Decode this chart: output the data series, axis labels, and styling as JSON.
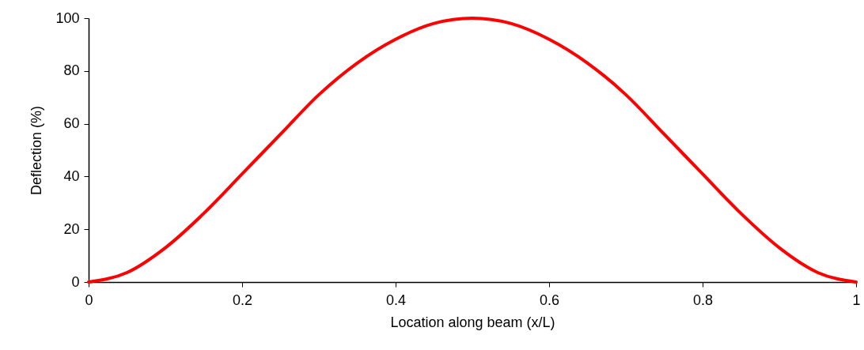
{
  "chart_data": {
    "type": "line",
    "xlabel": "Location along beam (x/L)",
    "ylabel": "Deflection (%)",
    "x": [
      0,
      0.05,
      0.1,
      0.15,
      0.2,
      0.25,
      0.3,
      0.35,
      0.4,
      0.45,
      0.5,
      0.55,
      0.6,
      0.65,
      0.7,
      0.75,
      0.8,
      0.85,
      0.9,
      0.95,
      1
    ],
    "series": [
      {
        "color": "#ff0000",
        "values": [
          0,
          3.6,
          13,
          26,
          41,
          56,
          71,
          83,
          92,
          98,
          100,
          98,
          92,
          83,
          71,
          56,
          41,
          26,
          13,
          3.6,
          0
        ]
      }
    ],
    "xlim": [
      0,
      1
    ],
    "ylim": [
      0,
      100
    ],
    "xticks": [
      0,
      0.2,
      0.4,
      0.6,
      0.8,
      1
    ],
    "yticks": [
      0,
      20,
      40,
      60,
      80,
      100
    ]
  }
}
